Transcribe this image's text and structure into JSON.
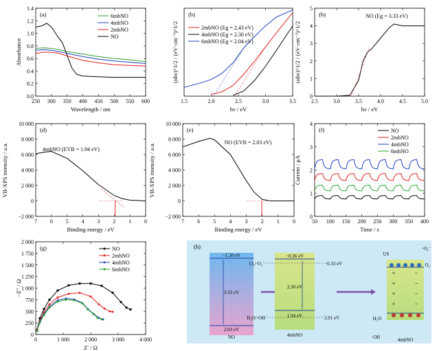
{
  "chart_data": [
    {
      "type": "line",
      "panel_label": "(a)",
      "xlabel": "Wavelength / nm",
      "ylabel": "Absorbance",
      "xlim": [
        250,
        600
      ],
      "ylim": [
        0.0,
        1.4
      ],
      "xticks": [
        "250",
        "300",
        "350",
        "400",
        "450",
        "500",
        "550",
        "600"
      ],
      "yticks": [
        "0.0",
        "0.2",
        "0.4",
        "0.6",
        "0.8",
        "1.0",
        "1.2",
        "1.4"
      ],
      "legend_position": "top-right",
      "series": [
        {
          "name": "6mbNO",
          "color": "#2ca02c",
          "x": [
            250,
            275,
            300,
            325,
            350,
            400,
            450,
            500,
            550,
            600
          ],
          "y": [
            0.76,
            0.77,
            0.76,
            0.74,
            0.71,
            0.67,
            0.63,
            0.6,
            0.58,
            0.55
          ]
        },
        {
          "name": "4mbNO",
          "color": "#1f3fbf",
          "x": [
            250,
            275,
            300,
            325,
            350,
            400,
            450,
            500,
            550,
            600
          ],
          "y": [
            0.73,
            0.74,
            0.73,
            0.71,
            0.68,
            0.63,
            0.59,
            0.56,
            0.54,
            0.52
          ]
        },
        {
          "name": "2mbNO",
          "color": "#e02020",
          "x": [
            250,
            275,
            300,
            325,
            350,
            400,
            450,
            500,
            550,
            600
          ],
          "y": [
            0.68,
            0.7,
            0.7,
            0.68,
            0.64,
            0.57,
            0.53,
            0.5,
            0.49,
            0.48
          ]
        },
        {
          "name": "NO",
          "color": "#000000",
          "x": [
            250,
            270,
            285,
            300,
            320,
            335,
            350,
            365,
            380,
            400,
            450,
            500,
            550,
            600
          ],
          "y": [
            1.1,
            1.12,
            1.16,
            1.1,
            0.95,
            0.85,
            0.65,
            0.45,
            0.35,
            0.32,
            0.31,
            0.3,
            0.3,
            0.3
          ]
        }
      ]
    },
    {
      "type": "line",
      "panel_label": "(b)",
      "xlabel": "hν / eV",
      "ylabel": "(αhν)^1/2 / (eV·cm⁻¹)^1/2",
      "xlim": [
        1.5,
        3.5
      ],
      "ylim": [
        0,
        1
      ],
      "xticks": [
        "1.5",
        "2.0",
        "2.5",
        "3.0",
        "3.5"
      ],
      "legend_position": "top-left",
      "series": [
        {
          "name": "2mbNO (Eg = 2.43 eV)",
          "color": "#e02020",
          "x": [
            2.0,
            2.2,
            2.4,
            2.6,
            2.8,
            3.0,
            3.2,
            3.5
          ],
          "y": [
            0.02,
            0.05,
            0.12,
            0.25,
            0.4,
            0.56,
            0.72,
            0.95
          ]
        },
        {
          "name": "4mbNO (Eg = 2.30 eV)",
          "color": "#000000",
          "x": [
            2.4,
            2.6,
            2.8,
            3.0,
            3.2,
            3.5
          ],
          "y": [
            0.01,
            0.06,
            0.18,
            0.34,
            0.52,
            0.8
          ]
        },
        {
          "name": "6mbNO (Eg = 2.04 eV)",
          "color": "#1f3fbf",
          "x": [
            1.5,
            1.8,
            2.0,
            2.2,
            2.4,
            2.6,
            2.8,
            3.0,
            3.2,
            3.5
          ],
          "y": [
            0.1,
            0.15,
            0.19,
            0.26,
            0.38,
            0.55,
            0.68,
            0.8,
            0.9,
            0.98
          ]
        }
      ]
    },
    {
      "type": "line",
      "panel_label": "(b)",
      "annotation": "NO (Eg = 3.33 eV)",
      "xlabel": "hν / eV",
      "ylabel": "(αhν)^1/2 / (eV·cm⁻¹)^1/2",
      "xlim": [
        2.5,
        5.0
      ],
      "ylim": [
        0,
        5
      ],
      "xticks": [
        "2.5",
        "3.0",
        "3.5",
        "4.0",
        "4.5",
        "5.0"
      ],
      "yticks": [
        "0",
        "1",
        "2",
        "3",
        "4",
        "5"
      ],
      "series": [
        {
          "name": "NO",
          "color": "#000000",
          "x": [
            2.5,
            3.0,
            3.3,
            3.5,
            3.6,
            3.7,
            3.8,
            4.0,
            4.2,
            4.3,
            4.5,
            4.8,
            5.0
          ],
          "y": [
            0.0,
            0.0,
            0.05,
            0.9,
            2.0,
            2.5,
            2.7,
            3.3,
            3.9,
            4.1,
            4.0,
            4.0,
            4.0
          ]
        }
      ]
    },
    {
      "type": "line",
      "panel_label": "(d)",
      "annotation": "4mbNO (EVB = 1.94 eV)",
      "xlabel": "Binding energy / eV",
      "ylabel": "VB-XPS intensity / a.u.",
      "xlim": [
        7,
        0
      ],
      "ylim": [
        -2000,
        10000
      ],
      "xticks": [
        "7",
        "6",
        "5",
        "4",
        "3",
        "2",
        "1",
        "0"
      ],
      "yticks": [
        "−2 000",
        "0",
        "2 000",
        "4 000",
        "6 000",
        "8 000",
        "10 000"
      ],
      "series": [
        {
          "name": "4mbNO",
          "color": "#000000",
          "x": [
            7,
            6.5,
            6,
            5,
            4,
            3,
            2,
            1.5,
            1,
            0
          ],
          "y": [
            6100,
            6300,
            6400,
            5500,
            3900,
            2100,
            700,
            300,
            100,
            0
          ]
        }
      ]
    },
    {
      "type": "line",
      "panel_label": "(e)",
      "annotation": "NO (EVB = 2.03 eV)",
      "xlabel": "Binding energy / eV",
      "ylabel": "VB-XPS intensity / a.u.",
      "xlim": [
        7,
        0
      ],
      "ylim": [
        -2000,
        10000
      ],
      "xticks": [
        "7",
        "6",
        "5",
        "4",
        "3",
        "2",
        "1",
        "0"
      ],
      "yticks": [
        "−2 000",
        "0",
        "2 000",
        "4 000",
        "6 000",
        "8 000",
        "10 000"
      ],
      "series": [
        {
          "name": "NO",
          "color": "#000000",
          "x": [
            7,
            6,
            5.3,
            5,
            4,
            3,
            2.5,
            2,
            1.5,
            1,
            0
          ],
          "y": [
            7000,
            7700,
            8100,
            7900,
            6000,
            2600,
            1100,
            200,
            0,
            0,
            0
          ]
        }
      ]
    },
    {
      "type": "line",
      "panel_label": "(f)",
      "xlabel": "Time / s",
      "ylabel": "Current / μA",
      "xlim": [
        50,
        400
      ],
      "ylim": [
        0,
        4
      ],
      "xticks": [
        "50",
        "100",
        "150",
        "200",
        "250",
        "300",
        "350",
        "400"
      ],
      "yticks": [
        "0",
        "1",
        "2",
        "3",
        "4"
      ],
      "legend_position": "top-right",
      "series": [
        {
          "name": "NO",
          "color": "#000000",
          "base": 0.75,
          "amp": 0.15
        },
        {
          "name": "2mbNO",
          "color": "#e02020",
          "base": 1.55,
          "amp": 0.3
        },
        {
          "name": "4mbNO",
          "color": "#1f3fbf",
          "base": 2.05,
          "amp": 0.4
        },
        {
          "name": "6mbNO",
          "color": "#2ca02c",
          "base": 1.1,
          "amp": 0.25
        }
      ]
    },
    {
      "type": "scatter",
      "panel_label": "(g)",
      "xlabel": "Z′ / Ω",
      "ylabel": "−Z″ / Ω",
      "xlim": [
        0,
        4000
      ],
      "ylim": [
        0,
        2000
      ],
      "xticks": [
        "0",
        "1 000",
        "2 000",
        "3 000",
        "4 000"
      ],
      "yticks": [
        "0",
        "250",
        "500",
        "750",
        "1 000",
        "1 250",
        "1 500",
        "1 750",
        "2 000"
      ],
      "legend_position": "top-right",
      "series": [
        {
          "name": "NO",
          "color": "#000000",
          "x": [
            50,
            150,
            300,
            500,
            800,
            1200,
            1600,
            2000,
            2400,
            2800,
            3100,
            3300,
            3450
          ],
          "y": [
            100,
            350,
            550,
            750,
            950,
            1060,
            1100,
            1100,
            1050,
            900,
            700,
            580,
            540
          ]
        },
        {
          "name": "2mbNO",
          "color": "#e02020",
          "x": [
            50,
            150,
            300,
            500,
            800,
            1200,
            1600,
            2000,
            2300,
            2500,
            2700,
            2800
          ],
          "y": [
            90,
            300,
            480,
            650,
            800,
            880,
            900,
            820,
            650,
            560,
            500,
            490
          ]
        },
        {
          "name": "4mbNO",
          "color": "#1f3fbf",
          "x": [
            50,
            150,
            300,
            500,
            800,
            1100,
            1400,
            1700,
            1900,
            2100,
            2300,
            2450
          ],
          "y": [
            80,
            280,
            440,
            600,
            740,
            780,
            760,
            680,
            550,
            450,
            360,
            330
          ]
        },
        {
          "name": "6mbNO",
          "color": "#2ca02c",
          "x": [
            50,
            150,
            300,
            500,
            800,
            1100,
            1400,
            1700,
            1900,
            2100,
            2250,
            2400
          ],
          "y": [
            75,
            260,
            420,
            580,
            710,
            750,
            740,
            670,
            540,
            440,
            360,
            330
          ]
        }
      ]
    },
    {
      "type": "diagram",
      "panel_label": "(h)",
      "labels": {
        "no_cb": "−1.30 eV",
        "no_gap": "3.33 eV",
        "no_vb": "2.03 eV",
        "no_name": "NO",
        "mb_cb": "−0.36 eV",
        "mb_gap": "2.30 eV",
        "mb_vb": "1.94 eV",
        "mb_name": "4mbNO",
        "o2_couple": "O₂/·O₂⁻",
        "o2_val": "−0.33 eV",
        "oh_couple": "H₂O/·OH",
        "oh_val": "2.01 eV",
        "us": "US",
        "o2_radical": "·O₂⁻",
        "o2": "O₂",
        "h2o": "H₂O",
        "oh": "·OH",
        "right_name": "4mbNO"
      }
    }
  ]
}
